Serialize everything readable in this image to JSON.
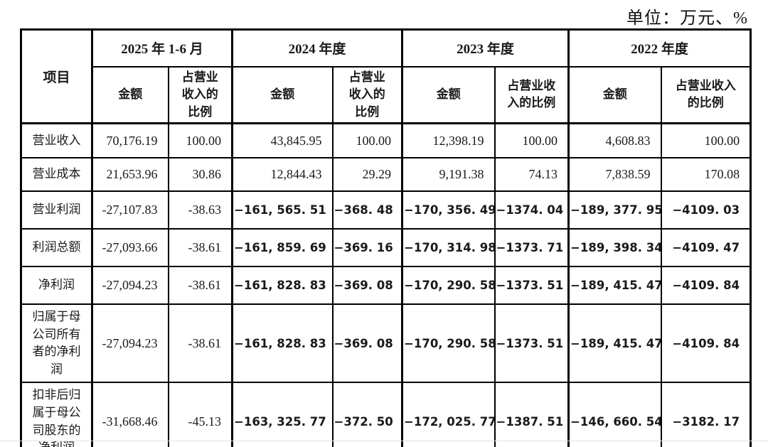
{
  "page": {
    "unit_label": "单位：万元、%"
  },
  "table": {
    "corner_header": "项目",
    "col_groups": [
      {
        "label": "2025 年 1-6 月",
        "amount_header": "金额",
        "ratio_header": "占营业\n收入的\n比例"
      },
      {
        "label": "2024 年度",
        "amount_header": "金额",
        "ratio_header": "占营业\n收入的\n比例"
      },
      {
        "label": "2023 年度",
        "amount_header": "金额",
        "ratio_header": "占营业收\n入的比例"
      },
      {
        "label": "2022 年度",
        "amount_header": "金额",
        "ratio_header": "占营业收入\n的比例"
      }
    ],
    "rows": [
      {
        "label": "营业收入",
        "values": [
          "70,176.19",
          "100.00",
          "43,845.95",
          "100.00",
          "12,398.19",
          "100.00",
          "4,608.83",
          "100.00"
        ],
        "bold_years": false
      },
      {
        "label": "营业成本",
        "values": [
          "21,653.96",
          "30.86",
          "12,844.43",
          "29.29",
          "9,191.38",
          "74.13",
          "7,838.59",
          "170.08"
        ],
        "bold_years": false
      },
      {
        "label": "营业利润",
        "values": [
          "-27,107.83",
          "-38.63",
          "−161, 565. 51",
          "−368. 48",
          "−170, 356. 49",
          "−1374. 04",
          "−189, 377. 95",
          "−4109. 03"
        ],
        "bold_years": true
      },
      {
        "label": "利润总额",
        "values": [
          "-27,093.66",
          "-38.61",
          "−161, 859. 69",
          "−369. 16",
          "−170, 314. 98",
          "−1373. 71",
          "−189, 398. 34",
          "−4109. 47"
        ],
        "bold_years": true
      },
      {
        "label": "净利润",
        "values": [
          "-27,094.23",
          "-38.61",
          "−161, 828. 83",
          "−369. 08",
          "−170, 290. 58",
          "−1373. 51",
          "−189, 415. 47",
          "−4109. 84"
        ],
        "bold_years": true
      },
      {
        "label": "归属于母公司所有者的净利润",
        "values": [
          "-27,094.23",
          "-38.61",
          "−161, 828. 83",
          "−369. 08",
          "−170, 290. 58",
          "−1373. 51",
          "−189, 415. 47",
          "−4109. 84"
        ],
        "bold_years": true
      },
      {
        "label": "扣非后归属于母公司股东的净利润",
        "values": [
          "-31,668.46",
          "-45.13",
          "−163, 325. 77",
          "−372. 50",
          "−172, 025. 77",
          "−1387. 51",
          "−146, 660. 54",
          "−3182. 17"
        ],
        "bold_years": true
      }
    ]
  }
}
